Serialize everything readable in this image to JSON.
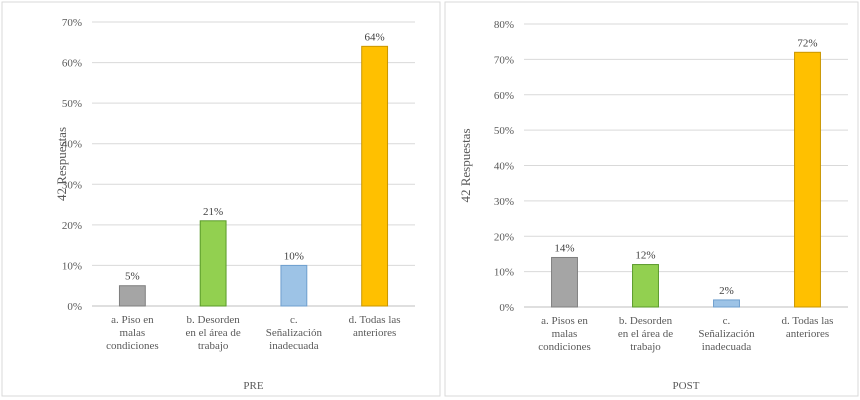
{
  "chart_data": [
    {
      "type": "bar",
      "xlabel": "PRE",
      "ylabel": "42 Respuestas",
      "ylim": [
        0,
        70
      ],
      "yticks": [
        0,
        10,
        20,
        30,
        40,
        50,
        60,
        70
      ],
      "tick_suffix": "%",
      "grid": true,
      "categories": [
        [
          "a. Piso en",
          "malas",
          "condiciones"
        ],
        [
          "b. Desorden",
          "en el área de",
          "trabajo"
        ],
        [
          "c.",
          "Señalización",
          "inadecuada"
        ],
        [
          "d. Todas las",
          "anteriores"
        ]
      ],
      "values": [
        5,
        21,
        10,
        64
      ],
      "data_labels": [
        "5%",
        "21%",
        "10%",
        "64%"
      ],
      "colors": [
        "#a5a5a5",
        "#92d050",
        "#9dc3e6",
        "#ffc000"
      ],
      "edge_colors": [
        "#7f7f7f",
        "#5a9a2a",
        "#6f9fce",
        "#c99600"
      ]
    },
    {
      "type": "bar",
      "xlabel": "POST",
      "ylabel": "42 Respuestas",
      "ylim": [
        0,
        80
      ],
      "yticks": [
        0,
        10,
        20,
        30,
        40,
        50,
        60,
        70,
        80
      ],
      "tick_suffix": "%",
      "grid": true,
      "categories": [
        [
          "a. Pisos en",
          "malas",
          "condiciones"
        ],
        [
          "b. Desorden",
          "en el área de",
          "trabajo"
        ],
        [
          "c.",
          "Señalización",
          "inadecuada"
        ],
        [
          "d. Todas las",
          "anteriores"
        ]
      ],
      "values": [
        14,
        12,
        2,
        72
      ],
      "data_labels": [
        "14%",
        "12%",
        "2%",
        "72%"
      ],
      "colors": [
        "#a5a5a5",
        "#92d050",
        "#9dc3e6",
        "#ffc000"
      ],
      "edge_colors": [
        "#7f7f7f",
        "#5a9a2a",
        "#6f9fce",
        "#c99600"
      ]
    }
  ]
}
